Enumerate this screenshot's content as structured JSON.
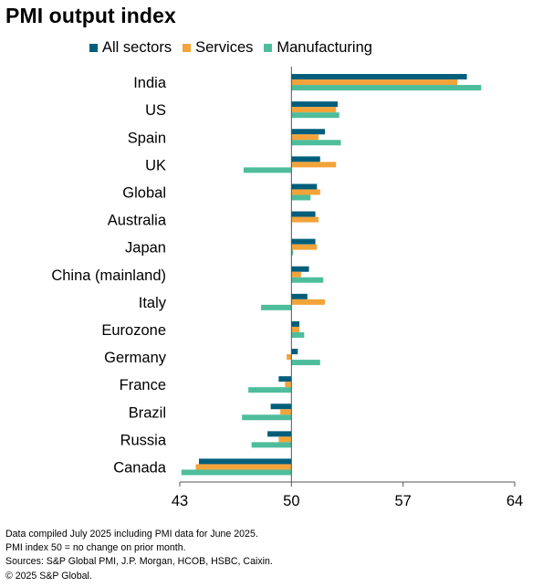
{
  "title": "PMI output index",
  "notes": [
    "Data compiled July 2025 including PMI data for June 2025.",
    "PMI index 50 = no change on prior month.",
    "Sources: S&P Global PMI, J.P. Morgan, HCOB, HSBC, Caixin.",
    "© 2025 S&P Global."
  ],
  "colors": {
    "all_sectors": "#005e7b",
    "services": "#f2a33a",
    "manufacturing": "#4ebd9c",
    "axis": "#555555"
  },
  "chart_data": {
    "type": "bar",
    "orientation": "horizontal",
    "title": "PMI output index",
    "categories": [
      "India",
      "US",
      "Spain",
      "UK",
      "Global",
      "Australia",
      "Japan",
      "China (mainland)",
      "Italy",
      "Eurozone",
      "Germany",
      "France",
      "Brazil",
      "Russia",
      "Canada"
    ],
    "series": [
      {
        "name": "All sectors",
        "values": [
          61.0,
          52.9,
          52.1,
          51.8,
          51.6,
          51.5,
          51.5,
          51.1,
          51.0,
          50.5,
          50.4,
          49.2,
          48.7,
          48.5,
          44.2
        ]
      },
      {
        "name": "Services",
        "values": [
          60.4,
          52.8,
          51.7,
          52.8,
          51.8,
          51.7,
          51.6,
          50.6,
          52.1,
          50.5,
          49.7,
          49.6,
          49.3,
          49.2,
          44.0
        ]
      },
      {
        "name": "Manufacturing",
        "values": [
          61.9,
          53.0,
          53.1,
          47.0,
          51.2,
          50.0,
          50.1,
          52.0,
          48.1,
          50.8,
          51.8,
          47.3,
          46.9,
          47.5,
          43.1
        ]
      }
    ],
    "x_ticks": [
      "43",
      "50",
      "57",
      "64"
    ],
    "xlim": [
      43,
      64
    ],
    "baseline": 50,
    "legend_position": "top",
    "grid": false
  }
}
